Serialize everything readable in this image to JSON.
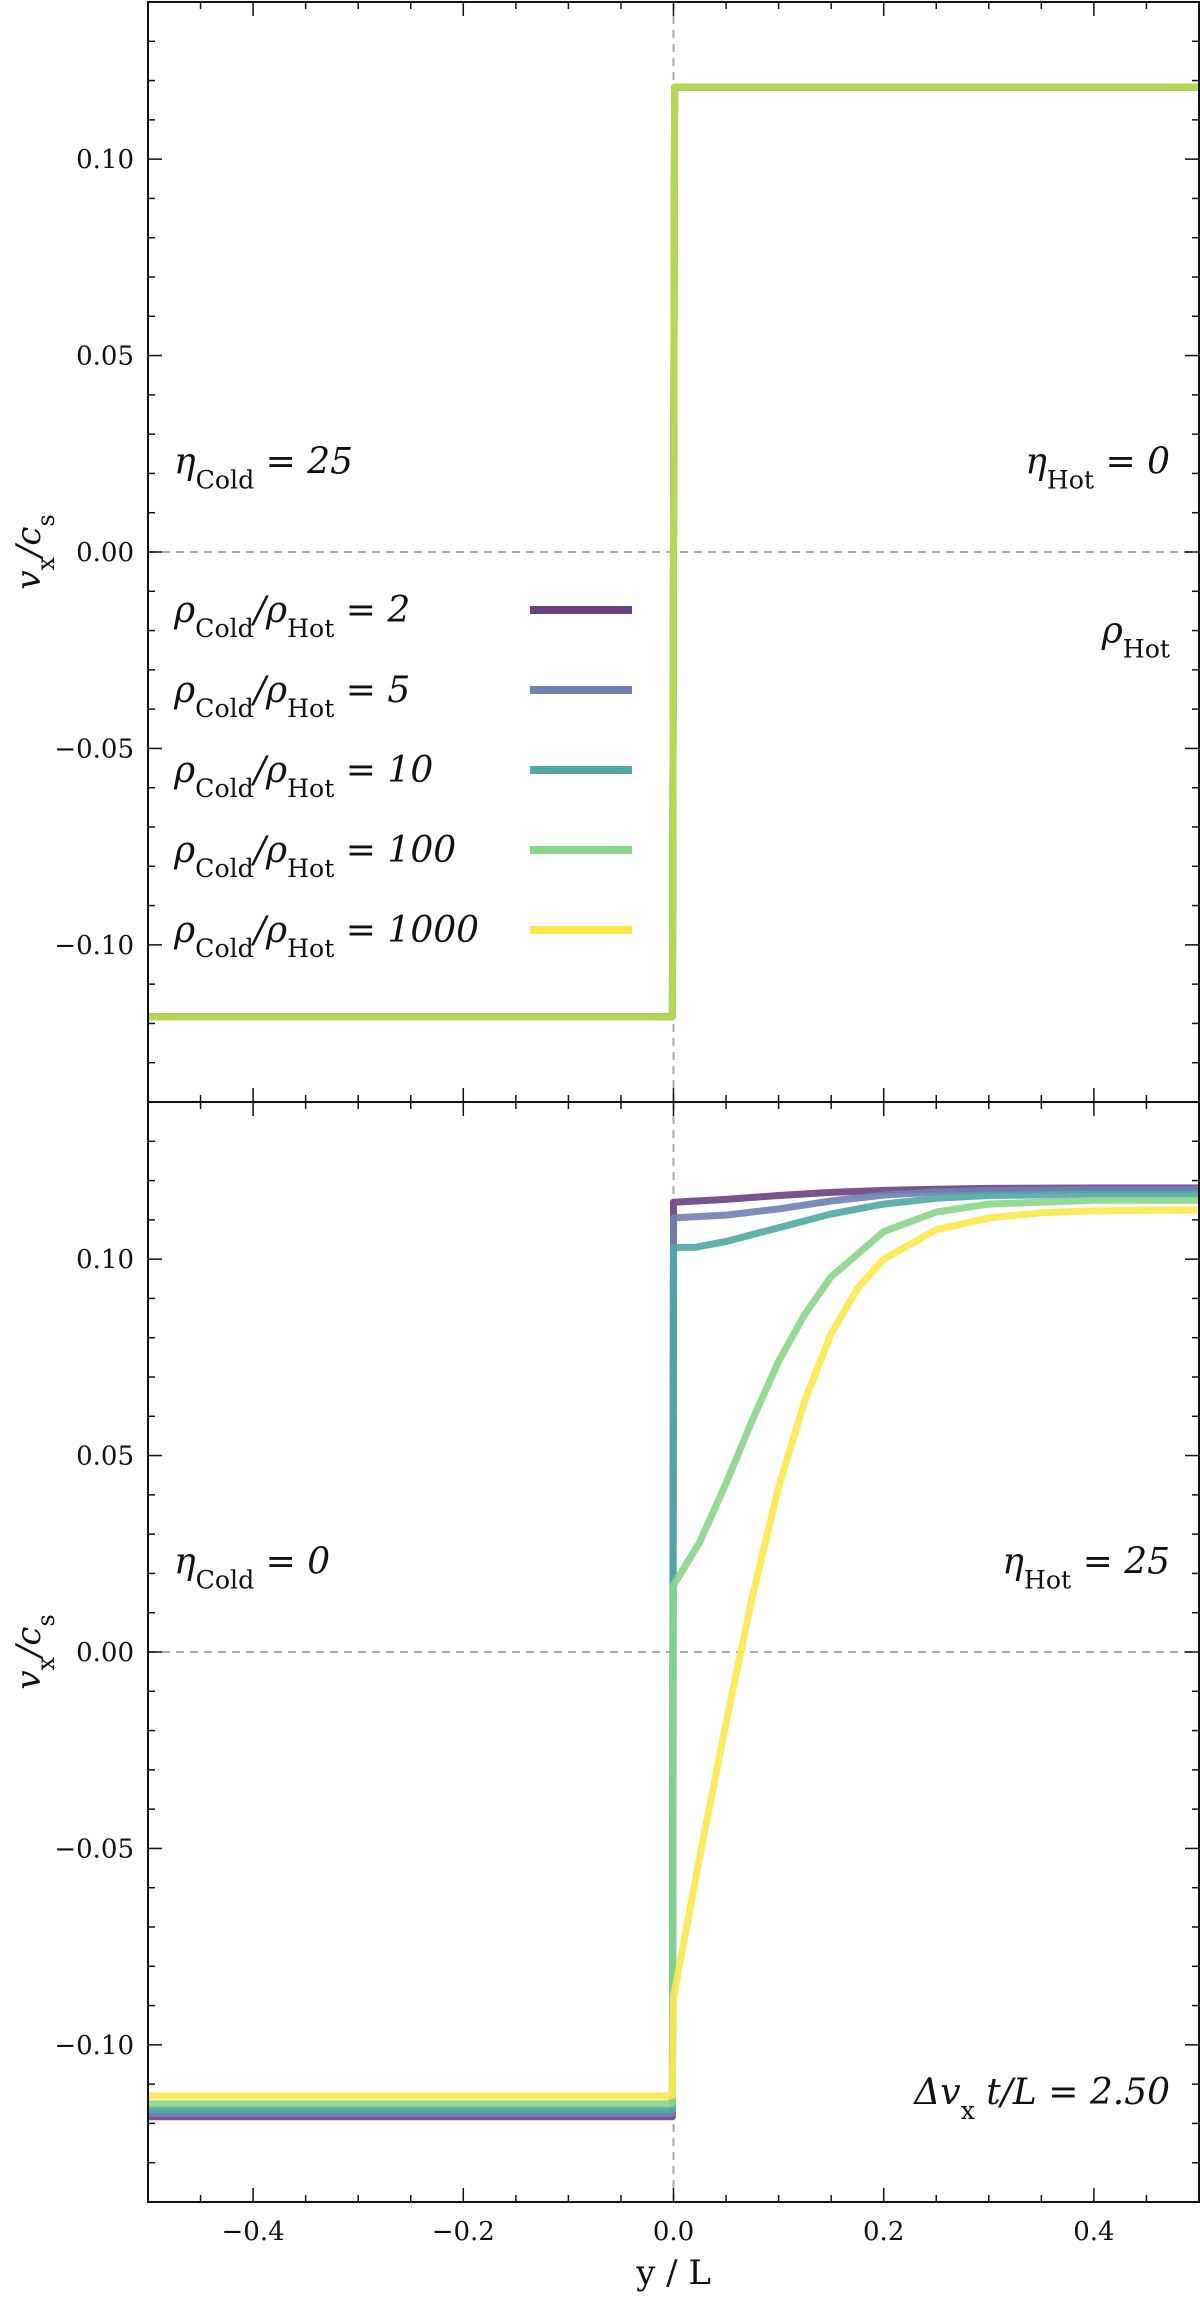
{
  "chart_data": [
    {
      "type": "line",
      "panel": "top",
      "xlim": [
        -0.5,
        0.5
      ],
      "ylim": [
        -0.14,
        0.14
      ],
      "xticks": [
        -0.4,
        -0.2,
        0.0,
        0.2,
        0.4
      ],
      "xtick_labels": [
        "",
        "",
        "",
        "",
        ""
      ],
      "yticks": [
        -0.1,
        -0.05,
        0.0,
        0.05,
        0.1
      ],
      "ytick_labels": [
        "−0.10",
        "−0.05",
        "0.00",
        "0.05",
        "0.10"
      ],
      "xlabel": "",
      "ylabel": "v_x/c_s",
      "reference_lines": {
        "horizontal": 0.0,
        "vertical": 0.0
      },
      "annotations": {
        "top_left": "η_Cold = 25",
        "top_right": "η_Hot = 0",
        "mid_right": "ρ_Hot"
      },
      "legend_location": "left",
      "series": [
        {
          "name": "ρ_Cold/ρ_Hot = 2",
          "color": "#6b3f7f",
          "x": [
            -0.5,
            -0.001,
            0.001,
            0.5
          ],
          "y": [
            -0.1183,
            -0.1183,
            0.1183,
            0.1183
          ]
        },
        {
          "name": "ρ_Cold/ρ_Hot = 5",
          "color": "#6f80b4",
          "x": [
            -0.5,
            -0.001,
            0.001,
            0.5
          ],
          "y": [
            -0.1183,
            -0.1183,
            0.1183,
            0.1183
          ]
        },
        {
          "name": "ρ_Cold/ρ_Hot = 10",
          "color": "#4fa8a5",
          "x": [
            -0.5,
            -0.001,
            0.001,
            0.5
          ],
          "y": [
            -0.1183,
            -0.1183,
            0.1183,
            0.1183
          ]
        },
        {
          "name": "ρ_Cold/ρ_Hot = 100",
          "color": "#8ad589",
          "x": [
            -0.5,
            -0.001,
            0.001,
            0.5
          ],
          "y": [
            -0.1183,
            -0.1183,
            0.1183,
            0.1183
          ]
        },
        {
          "name": "ρ_Cold/ρ_Hot = 1000",
          "color": "#c8dc3c",
          "x": [
            -0.5,
            -0.001,
            0.001,
            0.5
          ],
          "y": [
            -0.1183,
            -0.1183,
            0.1183,
            0.1183
          ]
        }
      ]
    },
    {
      "type": "line",
      "panel": "bottom",
      "xlim": [
        -0.5,
        0.5
      ],
      "ylim": [
        -0.14,
        0.14
      ],
      "xticks": [
        -0.4,
        -0.2,
        0.0,
        0.2,
        0.4
      ],
      "xtick_labels": [
        "−0.4",
        "−0.2",
        "0.0",
        "0.2",
        "0.4"
      ],
      "yticks": [
        -0.1,
        -0.05,
        0.0,
        0.05,
        0.1
      ],
      "ytick_labels": [
        "−0.10",
        "−0.05",
        "0.00",
        "0.05",
        "0.10"
      ],
      "xlabel": "y / L",
      "ylabel": "v_x/c_s",
      "reference_lines": {
        "horizontal": 0.0,
        "vertical": 0.0
      },
      "annotations": {
        "top_left": "η_Cold = 0",
        "top_right": "η_Hot = 25",
        "bottom_right": "Δv_x t/L = 2.50"
      },
      "series": [
        {
          "name": "ρ_Cold/ρ_Hot = 2",
          "color": "#6b3f7f",
          "x": [
            -0.5,
            -0.001,
            0.0,
            0.05,
            0.1,
            0.15,
            0.2,
            0.25,
            0.3,
            0.4,
            0.5
          ],
          "y": [
            -0.1183,
            -0.1183,
            0.1145,
            0.1152,
            0.1162,
            0.117,
            0.1175,
            0.1178,
            0.118,
            0.1181,
            0.1181
          ]
        },
        {
          "name": "ρ_Cold/ρ_Hot = 5",
          "color": "#6f80b4",
          "x": [
            -0.5,
            -0.001,
            0.0,
            0.05,
            0.1,
            0.15,
            0.2,
            0.25,
            0.3,
            0.4,
            0.5
          ],
          "y": [
            -0.1175,
            -0.1175,
            0.1105,
            0.1112,
            0.1128,
            0.1148,
            0.1163,
            0.1171,
            0.1175,
            0.1177,
            0.1177
          ]
        },
        {
          "name": "ρ_Cold/ρ_Hot = 10",
          "color": "#4fa8a5",
          "x": [
            -0.5,
            -0.001,
            0.0,
            0.02,
            0.05,
            0.1,
            0.15,
            0.2,
            0.25,
            0.3,
            0.4,
            0.5
          ],
          "y": [
            -0.1165,
            -0.1165,
            0.103,
            0.103,
            0.1045,
            0.108,
            0.1115,
            0.114,
            0.1155,
            0.1162,
            0.1165,
            0.1165
          ]
        },
        {
          "name": "ρ_Cold/ρ_Hot = 100",
          "color": "#8ad589",
          "x": [
            -0.5,
            -0.001,
            0.0,
            0.025,
            0.05,
            0.075,
            0.1,
            0.125,
            0.15,
            0.2,
            0.25,
            0.3,
            0.4,
            0.5
          ],
          "y": [
            -0.115,
            -0.115,
            0.017,
            0.028,
            0.043,
            0.059,
            0.074,
            0.086,
            0.0955,
            0.107,
            0.112,
            0.114,
            0.115,
            0.115
          ]
        },
        {
          "name": "ρ_Cold/ρ_Hot = 1000",
          "color": "#fde74c",
          "x": [
            -0.5,
            -0.001,
            0.0,
            0.025,
            0.05,
            0.075,
            0.1,
            0.125,
            0.15,
            0.175,
            0.2,
            0.25,
            0.3,
            0.35,
            0.4,
            0.5
          ],
          "y": [
            -0.113,
            -0.113,
            -0.088,
            -0.052,
            -0.018,
            0.014,
            0.042,
            0.064,
            0.081,
            0.0925,
            0.1,
            0.1075,
            0.1105,
            0.1118,
            0.1123,
            0.1125
          ]
        }
      ]
    }
  ]
}
